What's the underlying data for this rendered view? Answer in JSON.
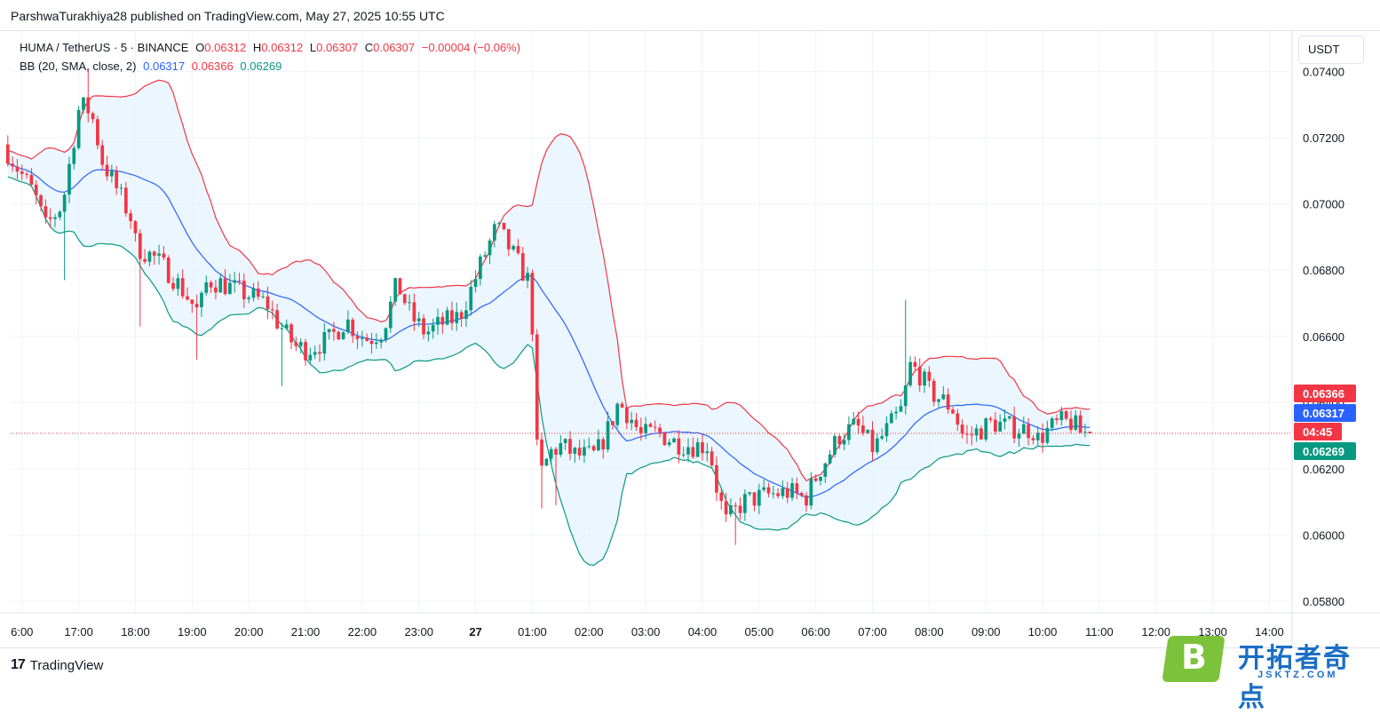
{
  "caption": "ParshwaTurakhiya28 published on TradingView.com, May 27, 2025 10:55 UTC",
  "legend": {
    "symbol": "HUMA / TetherUS · 5 · BINANCE",
    "o_label": "O",
    "o_value": "0.06312",
    "h_label": "H",
    "h_value": "0.06312",
    "l_label": "L",
    "l_value": "0.06307",
    "c_label": "C",
    "c_value": "0.06307",
    "change": "−0.00004 (−0.06%)",
    "bb_label": "BB (20, SMA, close, 2)",
    "bb_basis": "0.06317",
    "bb_upper": "0.06366",
    "bb_lower": "0.06269"
  },
  "currency_button": "USDT",
  "branding": {
    "tv": "TradingView"
  },
  "watermark": {
    "letter": "B",
    "text": "开拓者奇点",
    "url": "JSKTZ.COM"
  },
  "colors": {
    "up": "#089981",
    "down": "#f23645",
    "basis": "#2962ff",
    "upper": "#f23645",
    "lower": "#089981",
    "fill": "#e3f2fd"
  },
  "chart_data": {
    "type": "candlestick",
    "y_ticks": [
      "0.07400",
      "0.07200",
      "0.07000",
      "0.06800",
      "0.06600",
      "0.06400",
      "0.06200",
      "0.06000",
      "0.05800"
    ],
    "y_tick_values": [
      0.074,
      0.072,
      0.07,
      0.068,
      0.066,
      0.064,
      0.062,
      0.06,
      0.058
    ],
    "ylim": [
      0.05765,
      0.07525
    ],
    "x_ticks": [
      "6:00",
      "17:00",
      "18:00",
      "19:00",
      "20:00",
      "21:00",
      "22:00",
      "23:00",
      "27",
      "01:00",
      "02:00",
      "03:00",
      "04:00",
      "05:00",
      "06:00",
      "07:00",
      "08:00",
      "09:00",
      "10:00",
      "11:00",
      "12:00",
      "13:00",
      "14:00"
    ],
    "x_tick_hours": [
      16,
      17,
      18,
      19,
      20,
      21,
      22,
      23,
      24,
      25,
      26,
      27,
      28,
      29,
      30,
      31,
      32,
      33,
      34,
      35,
      36,
      37,
      38
    ],
    "xlim_hours": [
      15.8,
      38.4
    ],
    "last_hour": 34.9,
    "price_labels": [
      {
        "text": "0.06366",
        "value": 0.06366,
        "color": "#f23645"
      },
      {
        "text": "0.06317",
        "value": 0.06317,
        "color": "#2962ff"
      },
      {
        "text": "04:45",
        "value": 0.06307,
        "color": "#f23645"
      },
      {
        "text": "0.06269",
        "value": 0.06269,
        "color": "#089981"
      }
    ],
    "current_price": 0.06307,
    "bb_period": 20,
    "bb_mult": 2,
    "price_path": [
      [
        15.75,
        0.0718
      ],
      [
        16.0,
        0.0711
      ],
      [
        16.3,
        0.0703
      ],
      [
        16.5,
        0.0693
      ],
      [
        16.8,
        0.07
      ],
      [
        17.1,
        0.073
      ],
      [
        17.3,
        0.0728
      ],
      [
        17.5,
        0.0713
      ],
      [
        17.8,
        0.0703
      ],
      [
        18.0,
        0.0696
      ],
      [
        18.1,
        0.0687
      ],
      [
        18.4,
        0.0684
      ],
      [
        18.7,
        0.0679
      ],
      [
        19.0,
        0.0672
      ],
      [
        19.2,
        0.0667
      ],
      [
        19.35,
        0.0677
      ],
      [
        19.6,
        0.0676
      ],
      [
        20.0,
        0.0673
      ],
      [
        20.4,
        0.067
      ],
      [
        20.6,
        0.0664
      ],
      [
        20.9,
        0.0657
      ],
      [
        21.1,
        0.0656
      ],
      [
        21.5,
        0.0659
      ],
      [
        21.8,
        0.0665
      ],
      [
        22.0,
        0.0661
      ],
      [
        22.2,
        0.0659
      ],
      [
        22.45,
        0.0662
      ],
      [
        22.7,
        0.0676
      ],
      [
        22.95,
        0.0666
      ],
      [
        23.2,
        0.0661
      ],
      [
        23.5,
        0.0664
      ],
      [
        23.8,
        0.0666
      ],
      [
        24.0,
        0.0674
      ],
      [
        24.2,
        0.0683
      ],
      [
        24.45,
        0.0693
      ],
      [
        24.6,
        0.0689
      ],
      [
        24.8,
        0.0683
      ],
      [
        25.0,
        0.0677
      ],
      [
        25.08,
        0.0665
      ],
      [
        25.15,
        0.0627
      ],
      [
        25.25,
        0.0619
      ],
      [
        25.4,
        0.0625
      ],
      [
        25.6,
        0.0627
      ],
      [
        25.85,
        0.0624
      ],
      [
        26.2,
        0.0624
      ],
      [
        26.45,
        0.0633
      ],
      [
        26.6,
        0.064
      ],
      [
        26.8,
        0.0636
      ],
      [
        27.0,
        0.063
      ],
      [
        27.3,
        0.0631
      ],
      [
        27.6,
        0.0628
      ],
      [
        27.9,
        0.0627
      ],
      [
        28.2,
        0.0627
      ],
      [
        28.35,
        0.0613
      ],
      [
        28.5,
        0.0604
      ],
      [
        28.8,
        0.061
      ],
      [
        29.2,
        0.0612
      ],
      [
        29.6,
        0.0613
      ],
      [
        29.9,
        0.0611
      ],
      [
        30.1,
        0.0618
      ],
      [
        30.3,
        0.0624
      ],
      [
        30.5,
        0.063
      ],
      [
        30.8,
        0.0633
      ],
      [
        31.1,
        0.0626
      ],
      [
        31.35,
        0.0632
      ],
      [
        31.6,
        0.0638
      ],
      [
        31.75,
        0.0651
      ],
      [
        31.9,
        0.0649
      ],
      [
        32.1,
        0.0643
      ],
      [
        32.3,
        0.0641
      ],
      [
        32.5,
        0.0638
      ],
      [
        32.7,
        0.0629
      ],
      [
        33.0,
        0.0632
      ],
      [
        33.2,
        0.0634
      ],
      [
        33.4,
        0.0633
      ],
      [
        33.7,
        0.0632
      ],
      [
        33.9,
        0.0632
      ],
      [
        34.0,
        0.0629
      ],
      [
        34.2,
        0.0632
      ],
      [
        34.4,
        0.0634
      ],
      [
        34.6,
        0.0634
      ],
      [
        34.75,
        0.0631
      ],
      [
        34.9,
        0.06307
      ]
    ],
    "wick_spikes": [
      [
        17.15,
        0.0741
      ],
      [
        16.75,
        0.0677
      ],
      [
        18.05,
        0.0663
      ],
      [
        19.05,
        0.0653
      ],
      [
        20.55,
        0.0645
      ],
      [
        25.2,
        0.0608
      ],
      [
        25.45,
        0.0609
      ],
      [
        28.55,
        0.0597
      ],
      [
        31.6,
        0.0671
      ]
    ]
  }
}
